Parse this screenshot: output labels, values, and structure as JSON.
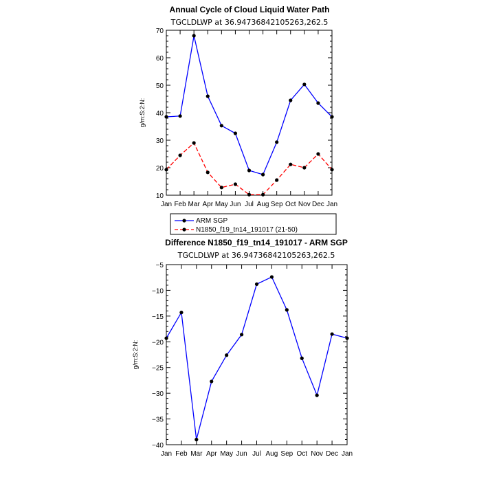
{
  "chart_data": [
    {
      "type": "line",
      "title": "Annual Cycle of Cloud Liquid Water Path",
      "subtitle": "TGCLDLWP at 36.94736842105263,262.5",
      "ylabel": "g/m:S:2:N:",
      "xlabel": "",
      "categories": [
        "Jan",
        "Feb",
        "Mar",
        "Apr",
        "May",
        "Jun",
        "Jul",
        "Aug",
        "Sep",
        "Oct",
        "Nov",
        "Dec",
        "Jan"
      ],
      "ylim": [
        10,
        70
      ],
      "yticks": [
        "10",
        "20",
        "30",
        "40",
        "50",
        "60",
        "70"
      ],
      "series": [
        {
          "name": "ARM SGP",
          "color": "#0000ff",
          "dash": "solid",
          "values": [
            38.5,
            38.8,
            68.0,
            46.0,
            35.3,
            32.5,
            19.0,
            17.5,
            29.3,
            44.5,
            50.3,
            43.5,
            38.5
          ]
        },
        {
          "name": "N1850_f19_tn14_191017 (21-50)",
          "color": "#ff0000",
          "dash": "dashed",
          "values": [
            19.3,
            24.5,
            29.0,
            18.3,
            12.8,
            14.0,
            10.2,
            10.2,
            15.5,
            21.2,
            20.0,
            25.0,
            19.3
          ]
        }
      ],
      "legend": "bottom"
    },
    {
      "type": "line",
      "title": "Difference N1850_f19_tn14_191017 - ARM SGP",
      "subtitle": "TGCLDLWP at 36.94736842105263,262.5",
      "ylabel": "g/m:S:2:N:",
      "xlabel": "",
      "categories": [
        "Jan",
        "Feb",
        "Mar",
        "Apr",
        "May",
        "Jun",
        "Jul",
        "Aug",
        "Sep",
        "Oct",
        "Nov",
        "Dec",
        "Jan"
      ],
      "ylim": [
        -40,
        -5
      ],
      "yticks": [
        "−40",
        "−35",
        "−30",
        "−25",
        "−20",
        "−15",
        "−10",
        "−5"
      ],
      "series": [
        {
          "name": "Difference",
          "color": "#0000ff",
          "dash": "solid",
          "values": [
            -19.3,
            -14.3,
            -39.0,
            -27.7,
            -22.6,
            -18.6,
            -8.8,
            -7.4,
            -13.8,
            -23.2,
            -30.4,
            -18.5,
            -19.3
          ]
        }
      ]
    }
  ]
}
